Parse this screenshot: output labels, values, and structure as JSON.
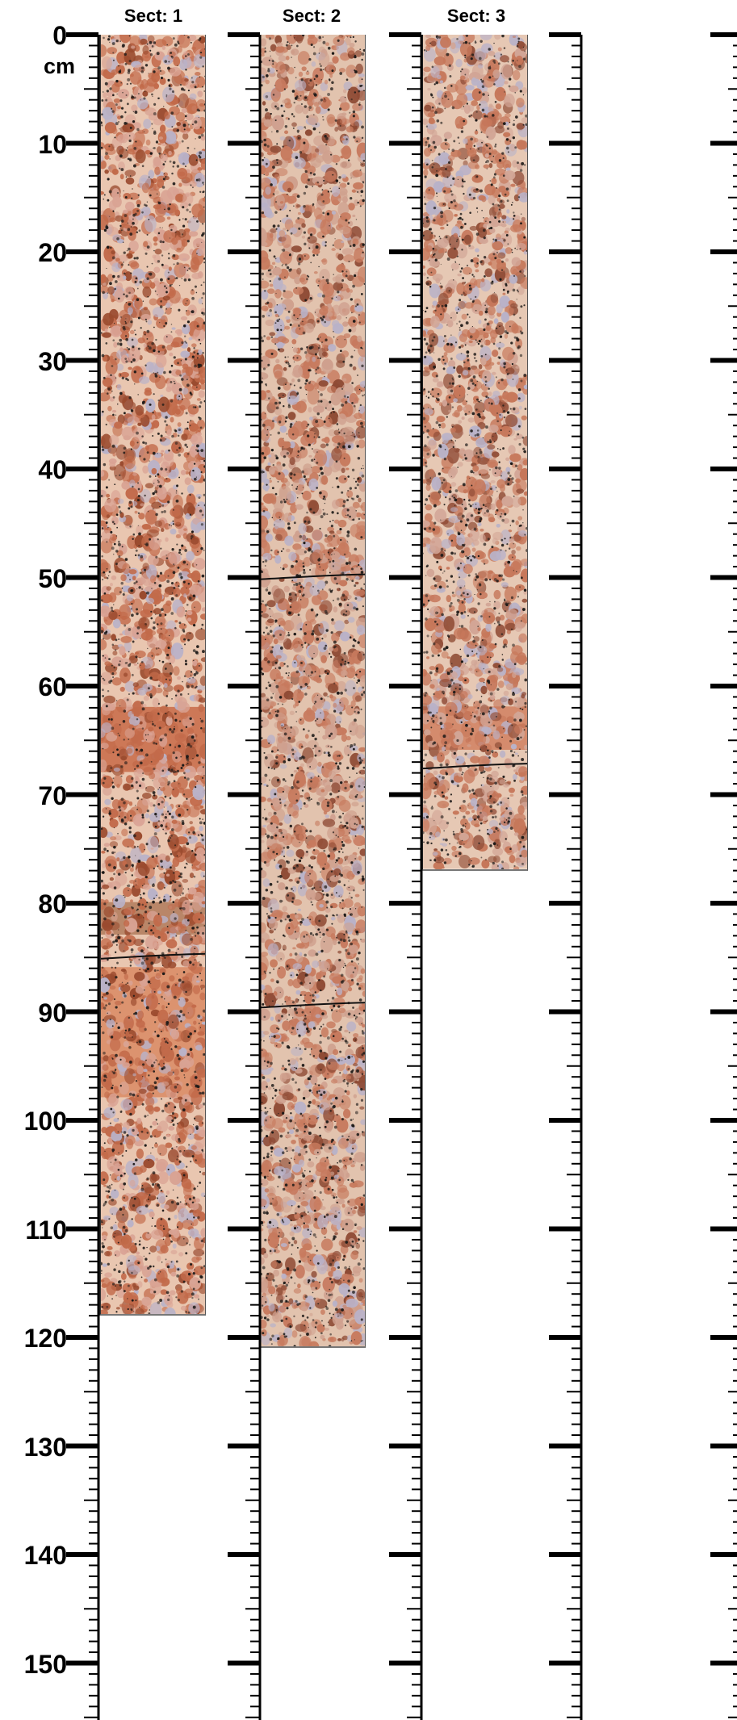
{
  "depth_scale": {
    "unit": "cm",
    "labels": [
      "0",
      "10",
      "20",
      "30",
      "40",
      "50",
      "60",
      "70",
      "80",
      "90",
      "100",
      "110",
      "120",
      "130",
      "140",
      "150"
    ]
  },
  "sections": [
    {
      "title": "Sect: 1",
      "length_cm": 118,
      "description_colors": [
        "#c26a4a",
        "#e9c6b0",
        "#d9a394",
        "#9a4a2e"
      ],
      "fractures_cm": [
        85
      ],
      "bands_cm": [
        {
          "from": 62,
          "to": 68,
          "color": "#c86a48"
        },
        {
          "from": 80,
          "to": 83,
          "color": "#b07a5c"
        },
        {
          "from": 86,
          "to": 98,
          "color": "#d98a64"
        }
      ]
    },
    {
      "title": "Sect: 2",
      "length_cm": 121,
      "description_colors": [
        "#c77a5e",
        "#e2c3ae",
        "#cfa08e",
        "#8e4a34"
      ],
      "fractures_cm": [
        50,
        89.5
      ],
      "bands_cm": []
    },
    {
      "title": "Sect: 3",
      "length_cm": 77,
      "description_colors": [
        "#c6775a",
        "#e6c8b4",
        "#d2a596",
        "#93503a"
      ],
      "fractures_cm": [
        67.5
      ],
      "bands_cm": [
        {
          "from": 62,
          "to": 66,
          "color": "#d08060"
        }
      ]
    },
    {
      "title": "",
      "length_cm": 0,
      "description_colors": [],
      "fractures_cm": [],
      "bands_cm": []
    }
  ]
}
